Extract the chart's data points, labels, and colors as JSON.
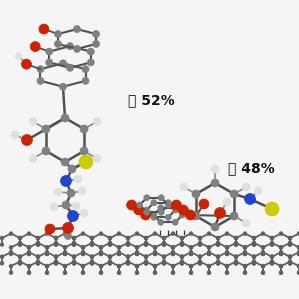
{
  "background_color": "#f5f5f5",
  "label_II": "Ⓑ 52%",
  "label_III": "Ⓒ 48%",
  "label_fontsize": 10,
  "label_fontweight": "bold",
  "figsize": [
    2.99,
    2.99
  ],
  "dpi": 100,
  "atom_colors": {
    "C": "#808080",
    "H": "#e0e0e0",
    "O": "#cc2200",
    "N": "#2244cc",
    "S": "#cccc00",
    "NT": "#606060"
  },
  "bond_color": "#505050",
  "nanotube_color": "#606060"
}
